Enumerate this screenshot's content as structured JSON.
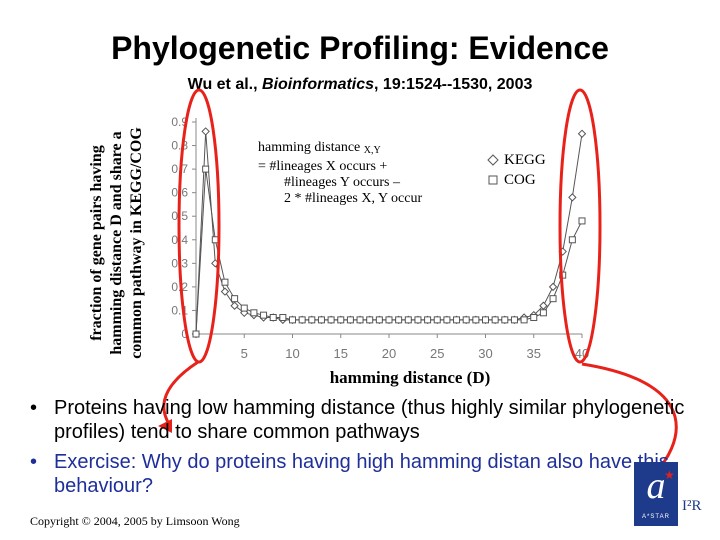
{
  "title": "Phylogenetic Profiling: Evidence",
  "citation": {
    "authors": "Wu et al., ",
    "journal": "Bioinformatics",
    "rest": ", 19:1524--1530, 2003"
  },
  "formula": {
    "line1": "hamming distance",
    "line1_sub": "X,Y",
    "line2": "= #lineages X occurs +",
    "line3": "#lineages Y occurs –",
    "line4": "2 * #lineages X, Y occur"
  },
  "bullets": [
    "Proteins having low hamming distance (thus highly similar phylogenetic profiles) tend to share common pathways",
    "Exercise: Why do proteins having high hamming distan also have this behaviour?"
  ],
  "bullet_symbol": "•",
  "copyright": "Copyright © 2004, 2005 by Limsoon Wong",
  "logo": {
    "mark": "a",
    "caption": "A*STAR",
    "text": "I²R"
  },
  "colors": {
    "highlight": "#e8221b",
    "series": "#555555",
    "bullet2": "#1f2f9a",
    "logo": "#1e3a8a"
  },
  "chart_data": {
    "type": "line",
    "title": "",
    "xlabel": "hamming distance (D)",
    "ylabel": "fraction of gene pairs having hamming distance D and share a common pathway in KEGG/COG",
    "xlim": [
      0,
      40
    ],
    "ylim": [
      0,
      0.9
    ],
    "xticks": [
      5,
      10,
      15,
      20,
      25,
      30,
      35,
      40
    ],
    "yticks": [
      0,
      0.1,
      0.2,
      0.3,
      0.4,
      0.5,
      0.6,
      0.7,
      0.8,
      0.9
    ],
    "grid": false,
    "legend_position": "top-right",
    "x": [
      0,
      1,
      2,
      3,
      4,
      5,
      6,
      7,
      8,
      9,
      10,
      11,
      12,
      13,
      14,
      15,
      16,
      17,
      18,
      19,
      20,
      21,
      22,
      23,
      24,
      25,
      26,
      27,
      28,
      29,
      30,
      31,
      32,
      33,
      34,
      35,
      36,
      37,
      38,
      39,
      40
    ],
    "series": [
      {
        "name": "KEGG",
        "marker": "diamond",
        "values": [
          0.0,
          0.86,
          0.3,
          0.18,
          0.12,
          0.09,
          0.08,
          0.07,
          0.07,
          0.06,
          0.06,
          0.06,
          0.06,
          0.06,
          0.06,
          0.06,
          0.06,
          0.06,
          0.06,
          0.06,
          0.06,
          0.06,
          0.06,
          0.06,
          0.06,
          0.06,
          0.06,
          0.06,
          0.06,
          0.06,
          0.06,
          0.06,
          0.06,
          0.06,
          0.07,
          0.08,
          0.12,
          0.2,
          0.35,
          0.58,
          0.85
        ]
      },
      {
        "name": "COG",
        "marker": "square",
        "values": [
          0.0,
          0.7,
          0.4,
          0.22,
          0.15,
          0.11,
          0.09,
          0.08,
          0.07,
          0.07,
          0.06,
          0.06,
          0.06,
          0.06,
          0.06,
          0.06,
          0.06,
          0.06,
          0.06,
          0.06,
          0.06,
          0.06,
          0.06,
          0.06,
          0.06,
          0.06,
          0.06,
          0.06,
          0.06,
          0.06,
          0.06,
          0.06,
          0.06,
          0.06,
          0.06,
          0.07,
          0.09,
          0.15,
          0.25,
          0.4,
          0.48
        ]
      }
    ]
  }
}
